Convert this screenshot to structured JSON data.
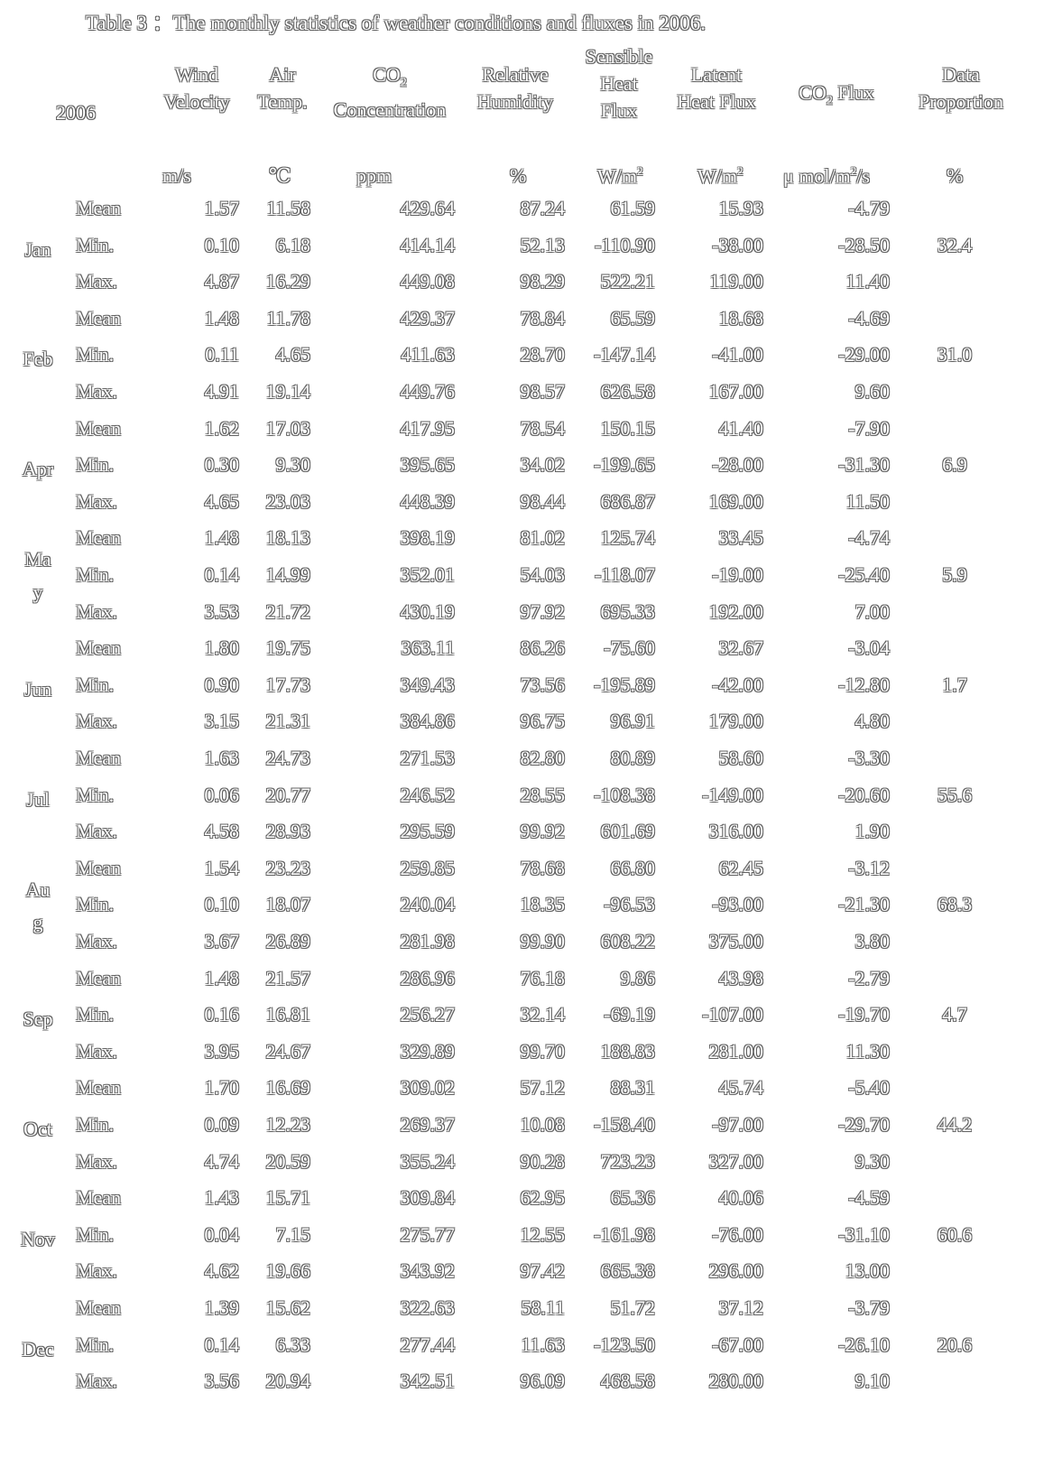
{
  "caption": "Table 3 ：The monthly statistics of weather conditions and fluxes in 2006.",
  "header": {
    "year": "2006",
    "wind_1": "Wind",
    "wind_2": "Velocity",
    "air_1": "Air",
    "air_2": "Temp.",
    "co2_1": "CO",
    "co2_sub": "2",
    "co2_2": "Concentration",
    "rh_1": "Relative",
    "rh_2": "Humidity",
    "sh_1": "Sensible",
    "sh_2": "Heat",
    "sh_3": "Flux",
    "lh_1": "Latent",
    "lh_2": "Heat Flux",
    "cf_1": "CO",
    "cf_sub": "2",
    "cf_2": " Flux",
    "dp_1": "Data",
    "dp_2": "Proportion"
  },
  "units": {
    "wind": "m/s",
    "air": "℃",
    "co2": "ppm",
    "rh": "%",
    "sh": "W/m",
    "sh_sup": "2",
    "lh": "W/m",
    "lh_sup": "2",
    "cf_a": "μ mol/m",
    "cf_sup": "2",
    "cf_b": "/s",
    "dp": "%"
  },
  "months": [
    {
      "label_1": "Jan",
      "label_2": "",
      "proportion": "32.4",
      "rows": [
        {
          "stat": "Mean",
          "values": [
            "1.57",
            "11.58",
            "429.64",
            "87.24",
            "61.59",
            "15.93",
            "-4.79"
          ]
        },
        {
          "stat": "Min.",
          "values": [
            "0.10",
            "6.18",
            "414.14",
            "52.13",
            "-110.90",
            "-38.00",
            "-28.50"
          ]
        },
        {
          "stat": "Max.",
          "values": [
            "4.87",
            "16.29",
            "449.08",
            "98.29",
            "522.21",
            "119.00",
            "11.40"
          ]
        }
      ]
    },
    {
      "label_1": "Feb",
      "label_2": "",
      "proportion": "31.0",
      "rows": [
        {
          "stat": "Mean",
          "values": [
            "1.48",
            "11.78",
            "429.37",
            "78.84",
            "65.59",
            "18.68",
            "-4.69"
          ]
        },
        {
          "stat": "Min.",
          "values": [
            "0.11",
            "4.65",
            "411.63",
            "28.70",
            "-147.14",
            "-41.00",
            "-29.00"
          ]
        },
        {
          "stat": "Max.",
          "values": [
            "4.91",
            "19.14",
            "449.76",
            "98.57",
            "626.58",
            "167.00",
            "9.60"
          ]
        }
      ]
    },
    {
      "label_1": "Apr",
      "label_2": "",
      "proportion": "6.9",
      "rows": [
        {
          "stat": "Mean",
          "values": [
            "1.62",
            "17.03",
            "417.95",
            "78.54",
            "150.15",
            "41.40",
            "-7.90"
          ]
        },
        {
          "stat": "Min.",
          "values": [
            "0.30",
            "9.30",
            "395.65",
            "34.02",
            "-199.65",
            "-28.00",
            "-31.30"
          ]
        },
        {
          "stat": "Max.",
          "values": [
            "4.65",
            "23.03",
            "448.39",
            "98.44",
            "686.87",
            "169.00",
            "11.50"
          ]
        }
      ]
    },
    {
      "label_1": "Ma",
      "label_2": "y",
      "proportion": "5.9",
      "rows": [
        {
          "stat": "Mean",
          "values": [
            "1.48",
            "18.13",
            "398.19",
            "81.02",
            "125.74",
            "33.45",
            "-4.74"
          ]
        },
        {
          "stat": "Min.",
          "values": [
            "0.14",
            "14.99",
            "352.01",
            "54.03",
            "-118.07",
            "-19.00",
            "-25.40"
          ]
        },
        {
          "stat": "Max.",
          "values": [
            "3.53",
            "21.72",
            "430.19",
            "97.92",
            "695.33",
            "192.00",
            "7.00"
          ]
        }
      ]
    },
    {
      "label_1": "Jun",
      "label_2": "",
      "proportion": "1.7",
      "rows": [
        {
          "stat": "Mean",
          "values": [
            "1.80",
            "19.75",
            "363.11",
            "86.26",
            "-75.60",
            "32.67",
            "-3.04"
          ]
        },
        {
          "stat": "Min.",
          "values": [
            "0.90",
            "17.73",
            "349.43",
            "73.56",
            "-195.89",
            "-42.00",
            "-12.80"
          ]
        },
        {
          "stat": "Max.",
          "values": [
            "3.15",
            "21.31",
            "384.86",
            "96.75",
            "96.91",
            "179.00",
            "4.80"
          ]
        }
      ]
    },
    {
      "label_1": "Jul",
      "label_2": "",
      "proportion": "55.6",
      "rows": [
        {
          "stat": "Mean",
          "values": [
            "1.63",
            "24.73",
            "271.53",
            "82.80",
            "80.89",
            "58.60",
            "-3.30"
          ]
        },
        {
          "stat": "Min.",
          "values": [
            "0.06",
            "20.77",
            "246.52",
            "28.55",
            "-108.38",
            "-149.00",
            "-20.60"
          ]
        },
        {
          "stat": "Max.",
          "values": [
            "4.58",
            "28.93",
            "295.59",
            "99.92",
            "601.69",
            "316.00",
            "1.90"
          ]
        }
      ]
    },
    {
      "label_1": "Au",
      "label_2": "g",
      "proportion": "68.3",
      "rows": [
        {
          "stat": "Mean",
          "values": [
            "1.54",
            "23.23",
            "259.85",
            "78.68",
            "66.80",
            "62.45",
            "-3.12"
          ]
        },
        {
          "stat": "Min.",
          "values": [
            "0.10",
            "18.07",
            "240.04",
            "18.35",
            "-96.53",
            "-93.00",
            "-21.30"
          ]
        },
        {
          "stat": "Max.",
          "values": [
            "3.67",
            "26.89",
            "281.98",
            "99.90",
            "608.22",
            "375.00",
            "3.80"
          ]
        }
      ]
    },
    {
      "label_1": "Sep",
      "label_2": "",
      "proportion": "4.7",
      "rows": [
        {
          "stat": "Mean",
          "values": [
            "1.48",
            "21.57",
            "286.96",
            "76.18",
            "9.86",
            "43.98",
            "-2.79"
          ]
        },
        {
          "stat": "Min.",
          "values": [
            "0.16",
            "16.81",
            "256.27",
            "32.14",
            "-69.19",
            "-107.00",
            "-19.70"
          ]
        },
        {
          "stat": "Max.",
          "values": [
            "3.95",
            "24.67",
            "329.89",
            "99.70",
            "188.83",
            "281.00",
            "11.30"
          ]
        }
      ]
    },
    {
      "label_1": "Oct",
      "label_2": "",
      "proportion": "44.2",
      "rows": [
        {
          "stat": "Mean",
          "values": [
            "1.70",
            "16.69",
            "309.02",
            "57.12",
            "88.31",
            "45.74",
            "-5.40"
          ]
        },
        {
          "stat": "Min.",
          "values": [
            "0.09",
            "12.23",
            "269.37",
            "10.08",
            "-158.40",
            "-97.00",
            "-29.70"
          ]
        },
        {
          "stat": "Max.",
          "values": [
            "4.74",
            "20.59",
            "355.24",
            "90.28",
            "723.23",
            "327.00",
            "9.30"
          ]
        }
      ]
    },
    {
      "label_1": "Nov",
      "label_2": "",
      "proportion": "60.6",
      "rows": [
        {
          "stat": "Mean",
          "values": [
            "1.43",
            "15.71",
            "309.84",
            "62.95",
            "65.36",
            "40.06",
            "-4.59"
          ]
        },
        {
          "stat": "Min.",
          "values": [
            "0.04",
            "7.15",
            "275.77",
            "12.55",
            "-161.98",
            "-76.00",
            "-31.10"
          ]
        },
        {
          "stat": "Max.",
          "values": [
            "4.62",
            "19.66",
            "343.92",
            "97.42",
            "665.38",
            "296.00",
            "13.00"
          ]
        }
      ]
    },
    {
      "label_1": "Dec",
      "label_2": "",
      "proportion": "20.6",
      "rows": [
        {
          "stat": "Mean",
          "values": [
            "1.39",
            "15.62",
            "322.63",
            "58.11",
            "51.72",
            "37.12",
            "-3.79"
          ]
        },
        {
          "stat": "Min.",
          "values": [
            "0.14",
            "6.33",
            "277.44",
            "11.63",
            "-123.50",
            "-67.00",
            "-26.10"
          ]
        },
        {
          "stat": "Max.",
          "values": [
            "3.56",
            "20.94",
            "342.51",
            "96.09",
            "468.58",
            "280.00",
            "9.10"
          ]
        }
      ]
    }
  ]
}
